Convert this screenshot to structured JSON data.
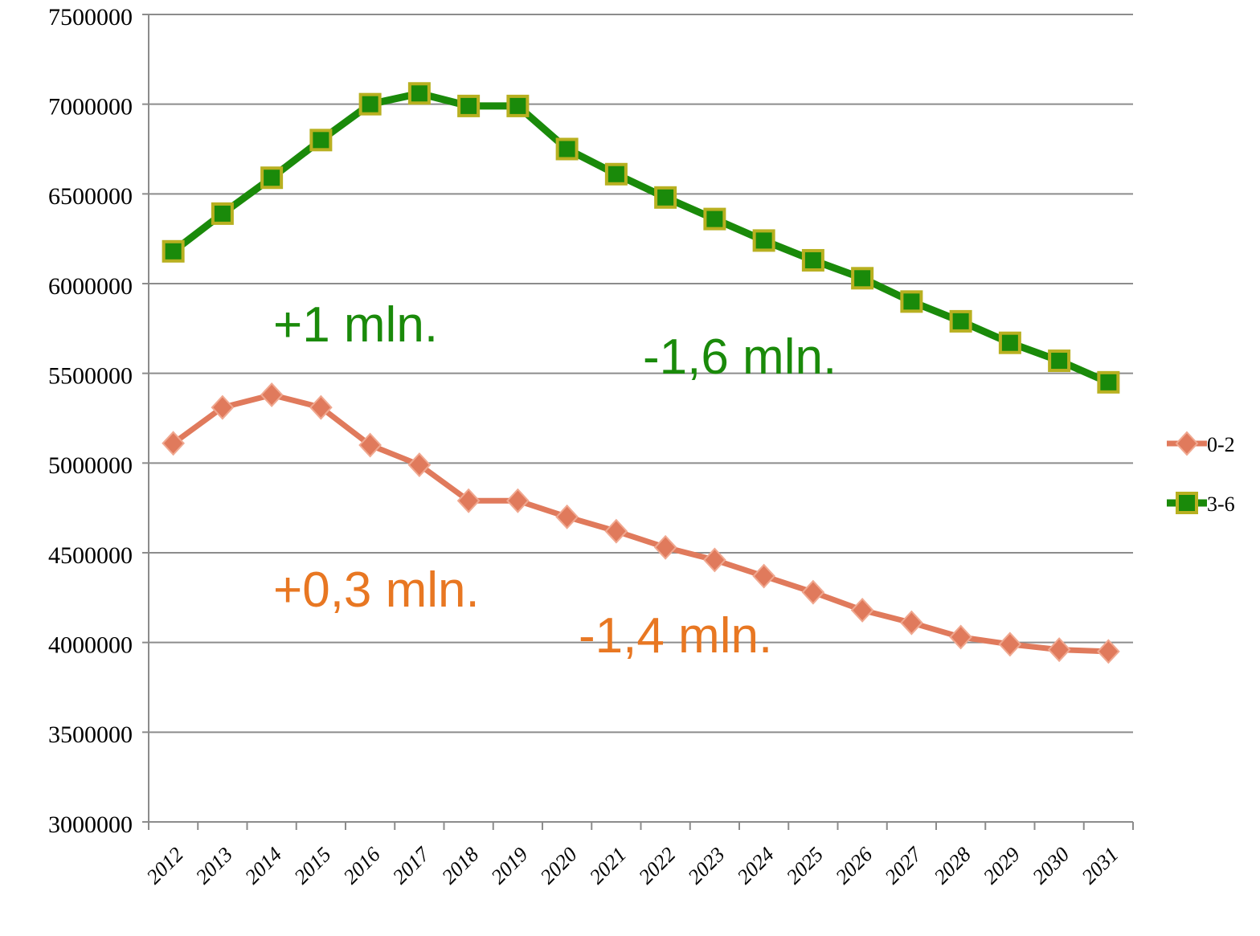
{
  "chart_data": {
    "type": "line",
    "categories": [
      "2012",
      "2013",
      "2014",
      "2015",
      "2016",
      "2017",
      "2018",
      "2019",
      "2020",
      "2021",
      "2022",
      "2023",
      "2024",
      "2025",
      "2026",
      "2027",
      "2028",
      "2029",
      "2030",
      "2031"
    ],
    "series": [
      {
        "name": "0-2",
        "color": "#e07a5c",
        "marker": "diamond",
        "values": [
          5110000,
          5310000,
          5380000,
          5310000,
          5100000,
          4990000,
          4790000,
          4790000,
          4700000,
          4620000,
          4530000,
          4460000,
          4370000,
          4280000,
          4180000,
          4110000,
          4030000,
          3990000,
          3960000,
          3950000
        ]
      },
      {
        "name": "3-6",
        "color": "#1a8a0a",
        "marker": "square",
        "values": [
          6180000,
          6390000,
          6590000,
          6800000,
          7000000,
          7060000,
          6990000,
          6990000,
          6750000,
          6610000,
          6480000,
          6360000,
          6240000,
          6130000,
          6030000,
          5900000,
          5790000,
          5670000,
          5570000,
          5450000
        ]
      }
    ],
    "ylim": [
      3000000,
      7500000
    ],
    "yticks": [
      3000000,
      3500000,
      4000000,
      4500000,
      5000000,
      5500000,
      6000000,
      6500000,
      7000000,
      7500000
    ],
    "grid": true,
    "legend": "right",
    "annotations": [
      {
        "text": "+1 mln.",
        "color": "#1a8a0a"
      },
      {
        "text": "-1,6 mln.",
        "color": "#1a8a0a"
      },
      {
        "text": "+0,3 mln.",
        "color": "#e87722"
      },
      {
        "text": "-1,4 mln.",
        "color": "#e87722"
      }
    ]
  }
}
